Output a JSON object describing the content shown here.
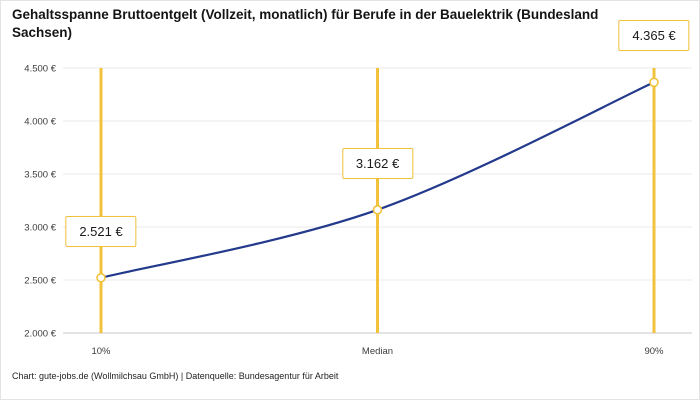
{
  "title": "Gehaltsspanne Bruttoentgelt (Vollzeit, monatlich) für Berufe in der Bauelektrik (Bundesland Sachsen)",
  "footer": "Chart: gute-jobs.de (Wollmilchsau GmbH) | Datenquelle: Bundesagentur für Arbeit",
  "colors": {
    "line": "#233A8C",
    "vline": "#F2C23C",
    "grid": "#E8E8E8",
    "axis": "#C8C8C8",
    "tick_text": "#3C3C3C",
    "marker_fill": "#FFFFFF"
  },
  "chart_data": {
    "type": "line",
    "title": "Gehaltsspanne Bruttoentgelt (Vollzeit, monatlich) für Berufe in der Bauelektrik (Bundesland Sachsen)",
    "categories": [
      "10%",
      "Median",
      "90%"
    ],
    "values": [
      2521,
      3162,
      4365
    ],
    "value_labels": [
      "2.521 €",
      "3.162 €",
      "4.365 €"
    ],
    "y_ticks": [
      2000,
      2500,
      3000,
      3500,
      4000,
      4500
    ],
    "y_tick_labels": [
      "2.000 €",
      "2.500 €",
      "3.000 €",
      "3.500 €",
      "4.000 €",
      "4.500 €"
    ],
    "ylim": [
      2000,
      4500
    ],
    "xlabel": "",
    "ylabel": "",
    "grid": true,
    "legend": false,
    "annotations": "vertical gold percentile lines at each category with white value boxes above each data point"
  }
}
